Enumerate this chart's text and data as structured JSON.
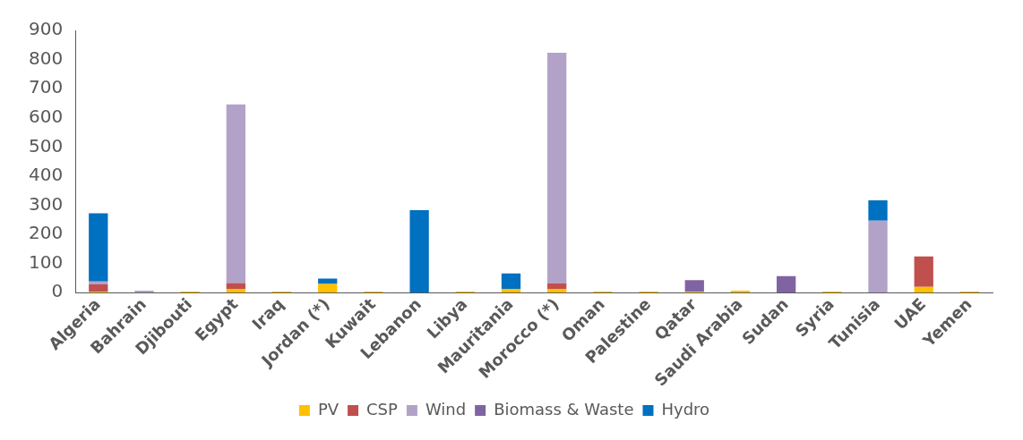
{
  "chart_data": {
    "type": "bar",
    "stacked": true,
    "categories": [
      "Algeria",
      "Bahrain",
      "Djibouti",
      "Egypt",
      "Iraq",
      "Jordan (*)",
      "Kuwait",
      "Lebanon",
      "Libya",
      "Mauritania",
      "Morocco (*)",
      "Oman",
      "Palestine",
      "Qatar",
      "Saudi Arabia",
      "Sudan",
      "Syria",
      "Tunisia",
      "UAE",
      "Yemen"
    ],
    "series": [
      {
        "name": "PV",
        "color": "#ffc000",
        "values": [
          3,
          0,
          4,
          13,
          4,
          30,
          4,
          0,
          4,
          13,
          13,
          4,
          4,
          3,
          7,
          0,
          4,
          0,
          20,
          4
        ]
      },
      {
        "name": "CSP",
        "color": "#c0504d",
        "values": [
          25,
          0,
          0,
          20,
          0,
          0,
          0,
          0,
          0,
          0,
          19,
          0,
          0,
          0,
          0,
          0,
          0,
          0,
          104,
          0
        ]
      },
      {
        "name": "Wind",
        "color": "#b2a2c7",
        "values": [
          10,
          7,
          0,
          613,
          0,
          0,
          0,
          0,
          0,
          0,
          791,
          0,
          0,
          0,
          0,
          0,
          0,
          247,
          0,
          0
        ]
      },
      {
        "name": "Biomass & Waste",
        "color": "#8064a2",
        "values": [
          0,
          0,
          0,
          0,
          0,
          0,
          0,
          0,
          0,
          0,
          0,
          0,
          0,
          40,
          0,
          57,
          0,
          0,
          0,
          0
        ]
      },
      {
        "name": "Hydro",
        "color": "#0070c0",
        "values": [
          234,
          0,
          0,
          0,
          0,
          18,
          0,
          283,
          0,
          53,
          0,
          0,
          0,
          0,
          0,
          0,
          0,
          70,
          0,
          0
        ]
      }
    ],
    "ylim": [
      0,
      900
    ],
    "yticks": [
      0,
      100,
      200,
      300,
      400,
      500,
      600,
      700,
      800,
      900
    ],
    "grid": false,
    "legend": "bottom"
  }
}
